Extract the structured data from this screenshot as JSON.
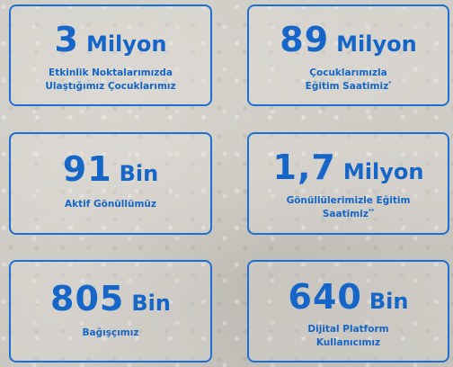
{
  "stats": [
    {
      "number": "3",
      "unit": "Milyon",
      "line1": "Etkinlik Noktalarımızda",
      "line2": "Ulaştığımız Çocuklarımız",
      "mark": ""
    },
    {
      "number": "89",
      "unit": "Milyon",
      "line1": "Çocuklarımızla",
      "line2": "Eğitim Saatimiz",
      "mark": "*"
    },
    {
      "number": "91",
      "unit": "Bin",
      "line1": "Aktif Gönüllümüz",
      "line2": "",
      "mark": ""
    },
    {
      "number": "1,7",
      "unit": "Milyon",
      "line1": "Gönüllülerimizle Eğitim",
      "line2": "Saatimiz",
      "mark": "**"
    },
    {
      "number": "805",
      "unit": "Bin",
      "line1": "Bağışçımız",
      "line2": "",
      "mark": ""
    },
    {
      "number": "640",
      "unit": "Bin",
      "line1": "Dijital Platform",
      "line2": "Kullanıcımız",
      "mark": ""
    }
  ],
  "colors": {
    "accent": "#1566c8",
    "border": "#1f6fd1",
    "background": "#c9c6c0"
  }
}
